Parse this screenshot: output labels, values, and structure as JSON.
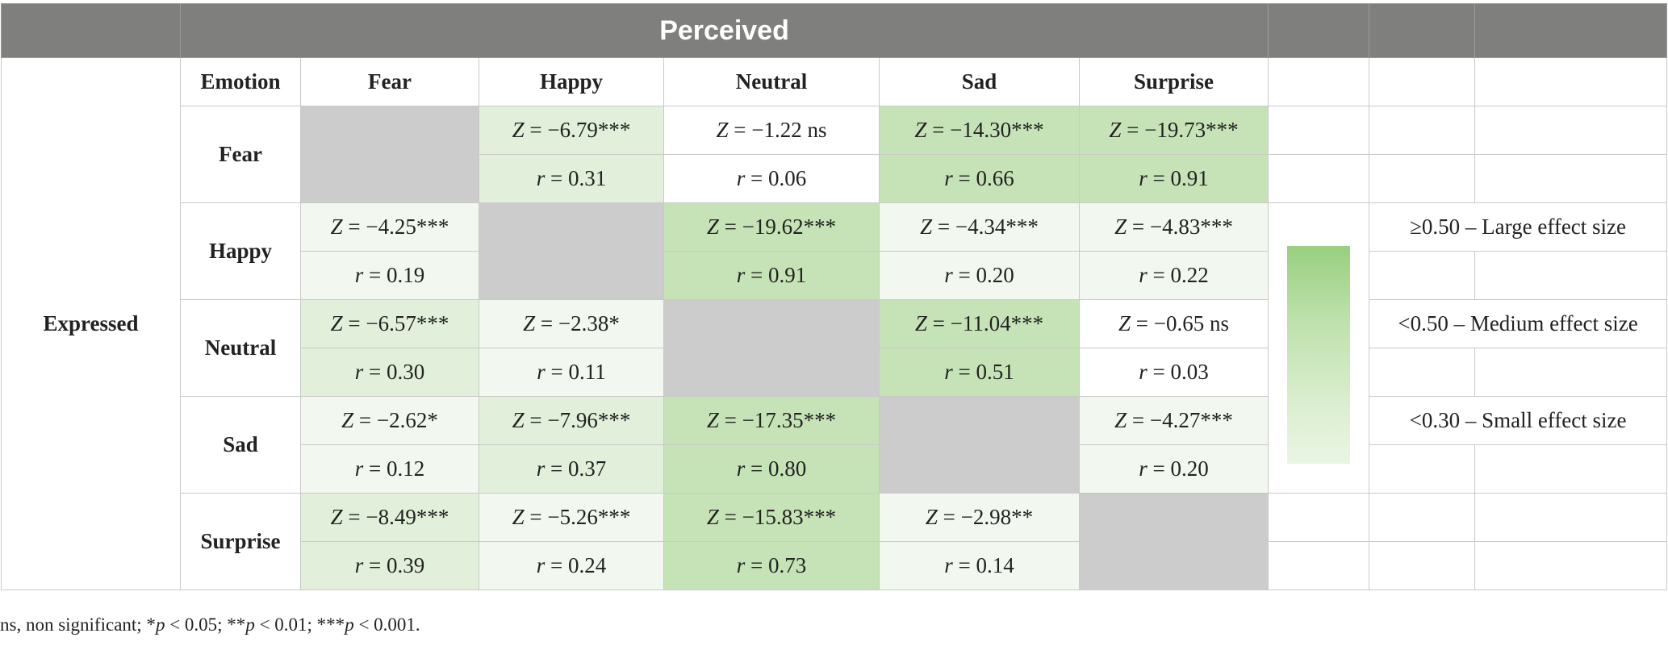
{
  "header": {
    "title": "Perceived"
  },
  "subheader": {
    "expressed_label": "Expressed",
    "emotion_label": "Emotion",
    "columns": [
      "Fear",
      "Happy",
      "Neutral",
      "Sad",
      "Surprise"
    ]
  },
  "rows": [
    {
      "label": "Fear",
      "z": [
        "",
        "Z = −6.79***",
        "Z = −1.22 ns",
        "Z = −14.30***",
        "Z = −19.73***"
      ],
      "r": [
        "",
        "r = 0.31",
        "r = 0.06",
        "r = 0.66",
        "r = 0.91"
      ]
    },
    {
      "label": "Happy",
      "z": [
        "Z = −4.25***",
        "",
        "Z = −19.62***",
        "Z = −4.34***",
        "Z = −4.83***"
      ],
      "r": [
        "r = 0.19",
        "",
        "r = 0.91",
        "r = 0.20",
        "r = 0.22"
      ]
    },
    {
      "label": "Neutral",
      "z": [
        "Z = −6.57***",
        "Z = −2.38*",
        "",
        "Z = −11.04***",
        "Z = −0.65 ns"
      ],
      "r": [
        "r = 0.30",
        "r = 0.11",
        "",
        "r = 0.51",
        "r = 0.03"
      ]
    },
    {
      "label": "Sad",
      "z": [
        "Z = −2.62*",
        "Z = −7.96***",
        "Z = −17.35***",
        "",
        "Z = −4.27***"
      ],
      "r": [
        "r = 0.12",
        "r = 0.37",
        "r = 0.80",
        "",
        "r = 0.20"
      ]
    },
    {
      "label": "Surprise",
      "z": [
        "Z = −8.49***",
        "Z = −5.26***",
        "Z = −15.83***",
        "Z = −2.98**",
        ""
      ],
      "r": [
        "r = 0.39",
        "r = 0.24",
        "r = 0.73",
        "r = 0.14",
        ""
      ]
    }
  ],
  "legend": {
    "large": "≥0.50 – Large effect size",
    "medium": "<0.50 – Medium effect size",
    "small": "<0.30 – Small effect size",
    "gradient_colors": [
      "#98cf7f",
      "#eaf5e4"
    ]
  },
  "cell_colors": {
    "diagonal": "#cccccc",
    "small": "#f2f8ef",
    "medium": "#e2f0db",
    "large": "#c6e3b7"
  },
  "footnote": "ns, non significant; *p < 0.05; **p < 0.01; ***p < 0.001."
}
